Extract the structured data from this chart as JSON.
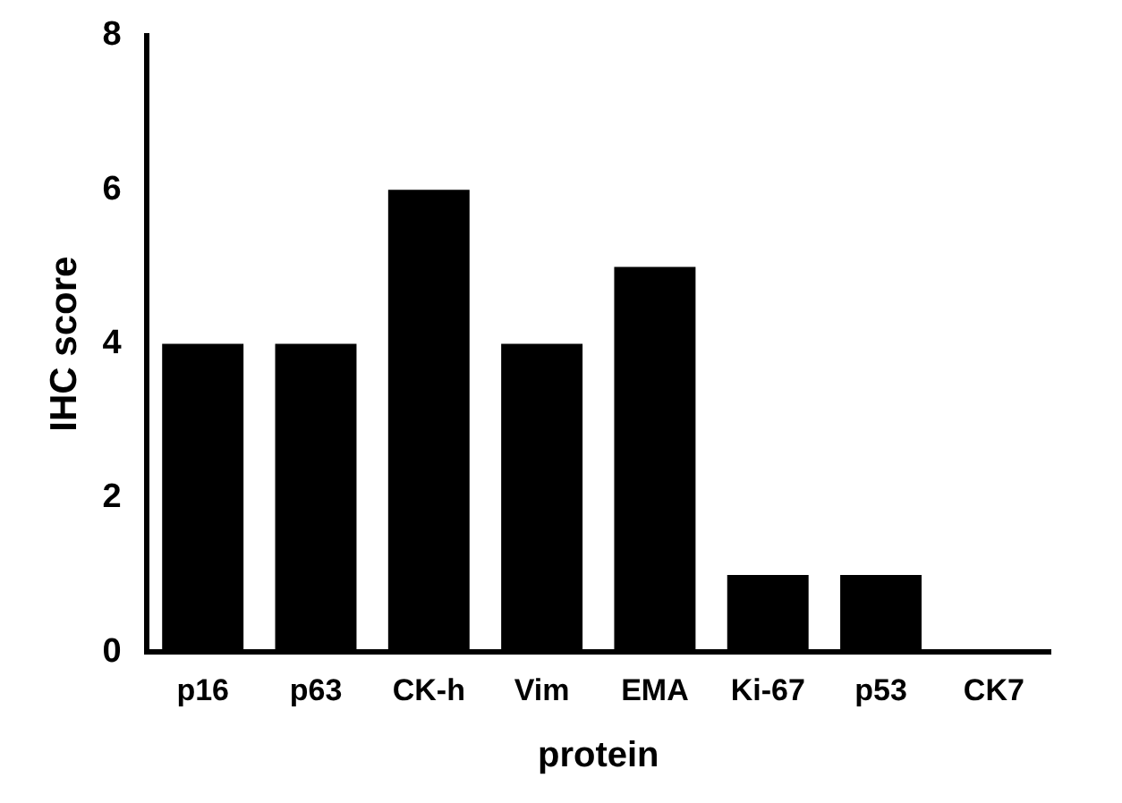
{
  "chart_data": {
    "type": "bar",
    "xlabel": "protein",
    "ylabel": "IHC score",
    "categories": [
      "p16",
      "p63",
      "CK-h",
      "Vim",
      "EMA",
      "Ki-67",
      "p53",
      "CK7"
    ],
    "values": [
      4,
      4,
      6,
      4,
      5,
      1,
      1,
      0
    ],
    "color": "#000000",
    "ylim": [
      0,
      8
    ],
    "yticks": [
      0,
      2,
      4,
      6,
      8
    ],
    "grid": false,
    "legend": false
  }
}
